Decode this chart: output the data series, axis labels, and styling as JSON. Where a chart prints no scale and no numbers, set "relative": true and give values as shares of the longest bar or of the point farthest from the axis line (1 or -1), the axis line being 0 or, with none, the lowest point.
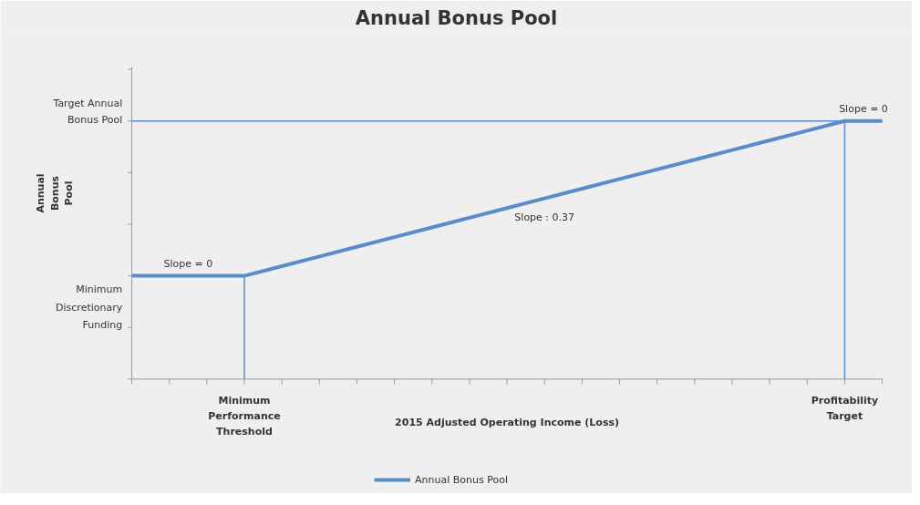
{
  "chart_data": {
    "type": "line",
    "title": "Annual Bonus Pool",
    "xlabel": "2015 Adjusted Operating Income (Loss)",
    "ylabel": "Annual Bonus Pool",
    "relative": true,
    "categories": [
      null,
      null,
      null,
      "Minimum Performance Threshold",
      null,
      null,
      null,
      null,
      null,
      null,
      null,
      null,
      null,
      null,
      null,
      null,
      null,
      null,
      null,
      "Profitability Target",
      null
    ],
    "series": [
      {
        "name": "Annual Bonus Pool",
        "color": "#5b8bc9",
        "values": [
          0.4,
          0.4,
          0.4,
          0.4,
          0.4375,
          0.475,
          0.5125,
          0.55,
          0.5875,
          0.625,
          0.6625,
          0.7,
          0.7375,
          0.775,
          0.8125,
          0.85,
          0.8875,
          0.925,
          0.9625,
          1,
          1
        ]
      }
    ],
    "ref_lines": [
      {
        "axis": "y",
        "value": 1,
        "label": "Target Annual Bonus Pool",
        "color": "#5b8bc9"
      },
      {
        "axis": "x",
        "value": "Minimum Performance Threshold",
        "color": "#5b8bc9"
      },
      {
        "axis": "x",
        "value": "Profitability Target",
        "color": "#5b8bc9"
      }
    ],
    "annotations": [
      "Slope = 0",
      "Slope : 0.37",
      "Slope = 0",
      "Minimum Discretionary Funding"
    ],
    "legend": "bottom",
    "grid": false
  }
}
